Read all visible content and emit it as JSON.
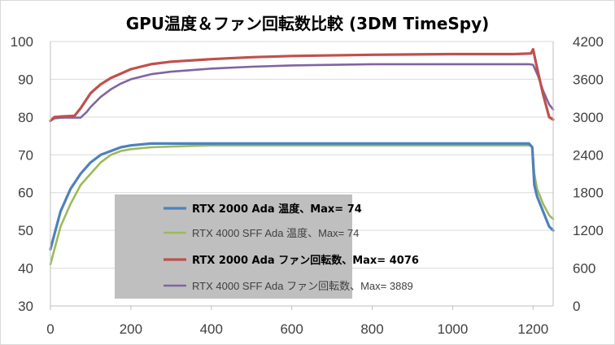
{
  "chart_data": {
    "type": "line",
    "title": "GPU温度＆ファン回転数比較 (3DM TimeSpy)",
    "xlabel": "",
    "ylabel": "",
    "xlim": [
      0,
      1250
    ],
    "ylim_left": [
      30,
      100
    ],
    "ylim_right": [
      0,
      4200
    ],
    "x_ticks": [
      "0",
      "200",
      "400",
      "600",
      "800",
      "1000",
      "1200"
    ],
    "y_left_ticks": [
      "100",
      "90",
      "80",
      "70",
      "60",
      "50",
      "40",
      "30"
    ],
    "y_right_ticks": [
      "4200",
      "3600",
      "3000",
      "2400",
      "1800",
      "1200",
      "600",
      "0"
    ],
    "grid": "horizontal",
    "legend_position": "center-left",
    "series": [
      {
        "name": "RTX 2000 Ada 温度、Max= 74",
        "axis": "left",
        "color": "#4f81bd",
        "bold": true,
        "points": [
          [
            0,
            45
          ],
          [
            10,
            49
          ],
          [
            25,
            55
          ],
          [
            50,
            61
          ],
          [
            75,
            65
          ],
          [
            100,
            68
          ],
          [
            125,
            70
          ],
          [
            150,
            71
          ],
          [
            175,
            72
          ],
          [
            200,
            72.5
          ],
          [
            250,
            73
          ],
          [
            300,
            73
          ],
          [
            400,
            73
          ],
          [
            600,
            73
          ],
          [
            800,
            73
          ],
          [
            1000,
            73
          ],
          [
            1190,
            73
          ],
          [
            1198,
            72
          ],
          [
            1203,
            62
          ],
          [
            1210,
            59
          ],
          [
            1225,
            55
          ],
          [
            1240,
            51
          ],
          [
            1250,
            50
          ]
        ]
      },
      {
        "name": "RTX 4000 SFF Ada 温度、Max= 74",
        "axis": "left",
        "color": "#9bbb59",
        "bold": false,
        "points": [
          [
            0,
            41
          ],
          [
            10,
            45
          ],
          [
            25,
            51
          ],
          [
            50,
            57
          ],
          [
            75,
            62
          ],
          [
            100,
            65
          ],
          [
            125,
            68
          ],
          [
            150,
            70
          ],
          [
            175,
            71
          ],
          [
            200,
            71.5
          ],
          [
            250,
            72
          ],
          [
            300,
            72.2
          ],
          [
            400,
            72.5
          ],
          [
            600,
            72.5
          ],
          [
            800,
            72.5
          ],
          [
            1000,
            72.5
          ],
          [
            1190,
            72.5
          ],
          [
            1198,
            72.2
          ],
          [
            1203,
            65
          ],
          [
            1210,
            61
          ],
          [
            1225,
            57
          ],
          [
            1240,
            54
          ],
          [
            1250,
            53
          ]
        ]
      },
      {
        "name": "RTX 2000 Ada ファン回転数、Max= 4076",
        "axis": "right",
        "color": "#c0504d",
        "bold": true,
        "points": [
          [
            0,
            2940
          ],
          [
            10,
            3000
          ],
          [
            30,
            3010
          ],
          [
            60,
            3020
          ],
          [
            75,
            3140
          ],
          [
            100,
            3380
          ],
          [
            125,
            3520
          ],
          [
            150,
            3620
          ],
          [
            175,
            3690
          ],
          [
            200,
            3760
          ],
          [
            250,
            3840
          ],
          [
            300,
            3880
          ],
          [
            400,
            3920
          ],
          [
            500,
            3950
          ],
          [
            600,
            3970
          ],
          [
            800,
            3990
          ],
          [
            1000,
            4000
          ],
          [
            1150,
            4000
          ],
          [
            1195,
            4010
          ],
          [
            1200,
            4076
          ],
          [
            1210,
            3780
          ],
          [
            1225,
            3360
          ],
          [
            1240,
            3000
          ],
          [
            1250,
            2960
          ]
        ]
      },
      {
        "name": "RTX 4000 SFF Ada ファン回転数、Max= 3889",
        "axis": "right",
        "color": "#8064a2",
        "bold": false,
        "points": [
          [
            0,
            2940
          ],
          [
            10,
            2980
          ],
          [
            30,
            2990
          ],
          [
            75,
            2990
          ],
          [
            90,
            3080
          ],
          [
            100,
            3160
          ],
          [
            125,
            3320
          ],
          [
            150,
            3440
          ],
          [
            175,
            3530
          ],
          [
            200,
            3600
          ],
          [
            250,
            3680
          ],
          [
            300,
            3720
          ],
          [
            400,
            3770
          ],
          [
            500,
            3800
          ],
          [
            600,
            3820
          ],
          [
            800,
            3840
          ],
          [
            1000,
            3840
          ],
          [
            1190,
            3840
          ],
          [
            1200,
            3830
          ],
          [
            1212,
            3660
          ],
          [
            1225,
            3420
          ],
          [
            1240,
            3200
          ],
          [
            1250,
            3120
          ]
        ]
      }
    ]
  }
}
